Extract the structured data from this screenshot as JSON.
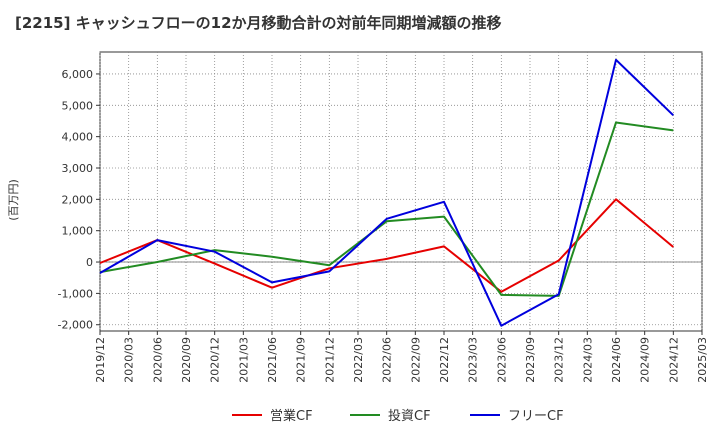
{
  "chart_data": {
    "type": "line",
    "title": "[2215]  キャッシュフローの12か月移動合計の対前年同期増減額の推移",
    "ylabel": "(百万円)",
    "xlabel": "",
    "ylim": [
      -2200,
      6700
    ],
    "yticks": [
      -2000,
      -1000,
      0,
      1000,
      2000,
      3000,
      4000,
      5000,
      6000
    ],
    "ytick_labels": [
      "-2,000",
      "-1,000",
      "0",
      "1,000",
      "2,000",
      "3,000",
      "4,000",
      "5,000",
      "6,000"
    ],
    "categories": [
      "2019/12",
      "2020/03",
      "2020/06",
      "2020/09",
      "2020/12",
      "2021/03",
      "2021/06",
      "2021/09",
      "2021/12",
      "2022/03",
      "2022/06",
      "2022/09",
      "2022/12",
      "2023/03",
      "2023/06",
      "2023/09",
      "2023/12",
      "2024/03",
      "2024/06",
      "2024/09",
      "2024/12",
      "2025/03"
    ],
    "grid": true,
    "legend_position": "bottom",
    "series": [
      {
        "name": "営業CF",
        "color": "#e60000",
        "points": [
          {
            "x": "2019/12",
            "y": -30
          },
          {
            "x": "2020/06",
            "y": 700
          },
          {
            "x": "2020/12",
            "y": -50
          },
          {
            "x": "2021/06",
            "y": -820
          },
          {
            "x": "2021/12",
            "y": -200
          },
          {
            "x": "2022/06",
            "y": 100
          },
          {
            "x": "2022/12",
            "y": 500
          },
          {
            "x": "2023/06",
            "y": -950
          },
          {
            "x": "2023/12",
            "y": 50
          },
          {
            "x": "2024/06",
            "y": 2000
          },
          {
            "x": "2024/12",
            "y": 480
          }
        ]
      },
      {
        "name": "投資CF",
        "color": "#228b22",
        "points": [
          {
            "x": "2019/12",
            "y": -320
          },
          {
            "x": "2020/06",
            "y": 0
          },
          {
            "x": "2020/12",
            "y": 380
          },
          {
            "x": "2021/06",
            "y": 170
          },
          {
            "x": "2021/12",
            "y": -100
          },
          {
            "x": "2022/06",
            "y": 1300
          },
          {
            "x": "2022/12",
            "y": 1450
          },
          {
            "x": "2023/06",
            "y": -1050
          },
          {
            "x": "2023/12",
            "y": -1080
          },
          {
            "x": "2024/06",
            "y": 4450
          },
          {
            "x": "2024/12",
            "y": 4200
          }
        ]
      },
      {
        "name": "フリーCF",
        "color": "#0000dd",
        "points": [
          {
            "x": "2019/12",
            "y": -350
          },
          {
            "x": "2020/06",
            "y": 700
          },
          {
            "x": "2020/12",
            "y": 330
          },
          {
            "x": "2021/06",
            "y": -650
          },
          {
            "x": "2021/12",
            "y": -300
          },
          {
            "x": "2022/06",
            "y": 1380
          },
          {
            "x": "2022/12",
            "y": 1920
          },
          {
            "x": "2023/06",
            "y": -2030
          },
          {
            "x": "2023/12",
            "y": -1030
          },
          {
            "x": "2024/06",
            "y": 6450
          },
          {
            "x": "2024/12",
            "y": 4680
          }
        ]
      }
    ]
  }
}
